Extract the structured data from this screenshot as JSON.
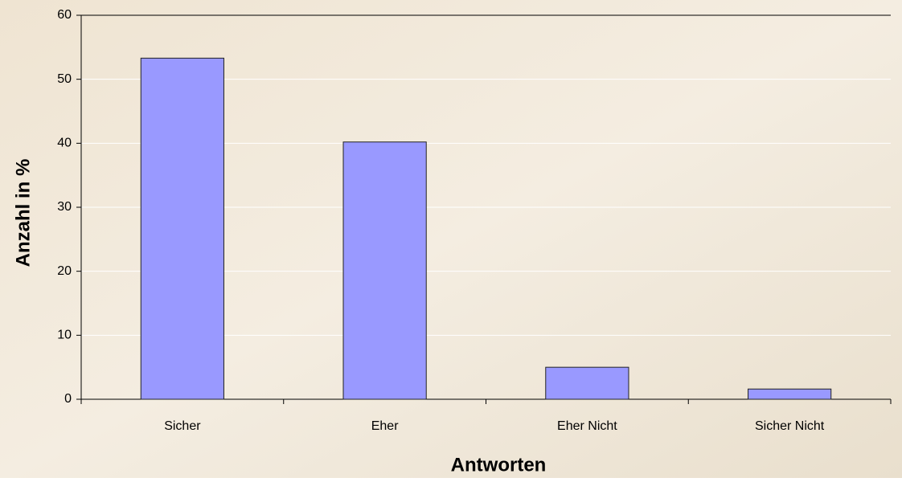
{
  "chart_data": {
    "type": "bar",
    "categories": [
      "Sicher",
      "Eher",
      "Eher Nicht",
      "Sicher Nicht"
    ],
    "values": [
      53.3,
      40.2,
      5.0,
      1.6
    ],
    "color": "#9999ff",
    "ylim": [
      0,
      60
    ],
    "yticks": [
      0,
      10,
      20,
      30,
      40,
      50,
      60
    ],
    "y_label": "Anzahl in %",
    "x_label": "Antworten",
    "grid": true
  }
}
